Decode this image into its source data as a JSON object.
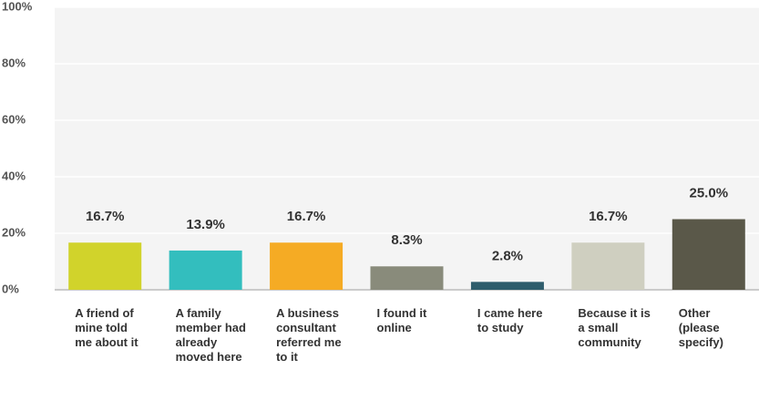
{
  "chart_data": {
    "type": "bar",
    "categories": [
      "A friend of mine told me about it",
      "A family member had already moved here",
      "A business consultant referred me to it",
      "I found it online",
      "I came here to study",
      "Because it is a small community",
      "Other (please specify)"
    ],
    "values": [
      16.7,
      13.9,
      16.7,
      8.3,
      2.8,
      16.7,
      25.0
    ],
    "value_labels": [
      "16.7%",
      "13.9%",
      "16.7%",
      "8.3%",
      "2.8%",
      "16.7%",
      "25.0%"
    ],
    "colors": [
      "#d1d32b",
      "#33bebe",
      "#f5ab24",
      "#898b7b",
      "#2f5d6c",
      "#cfcfc0",
      "#5a5849"
    ],
    "ylim": [
      0,
      100
    ],
    "yticks": [
      {
        "value": 0,
        "label": "0%"
      },
      {
        "value": 20,
        "label": "20%"
      },
      {
        "value": 40,
        "label": "40%"
      },
      {
        "value": 60,
        "label": "60%"
      },
      {
        "value": 80,
        "label": "80%"
      },
      {
        "value": 100,
        "label": "100%"
      }
    ],
    "grid": true
  }
}
